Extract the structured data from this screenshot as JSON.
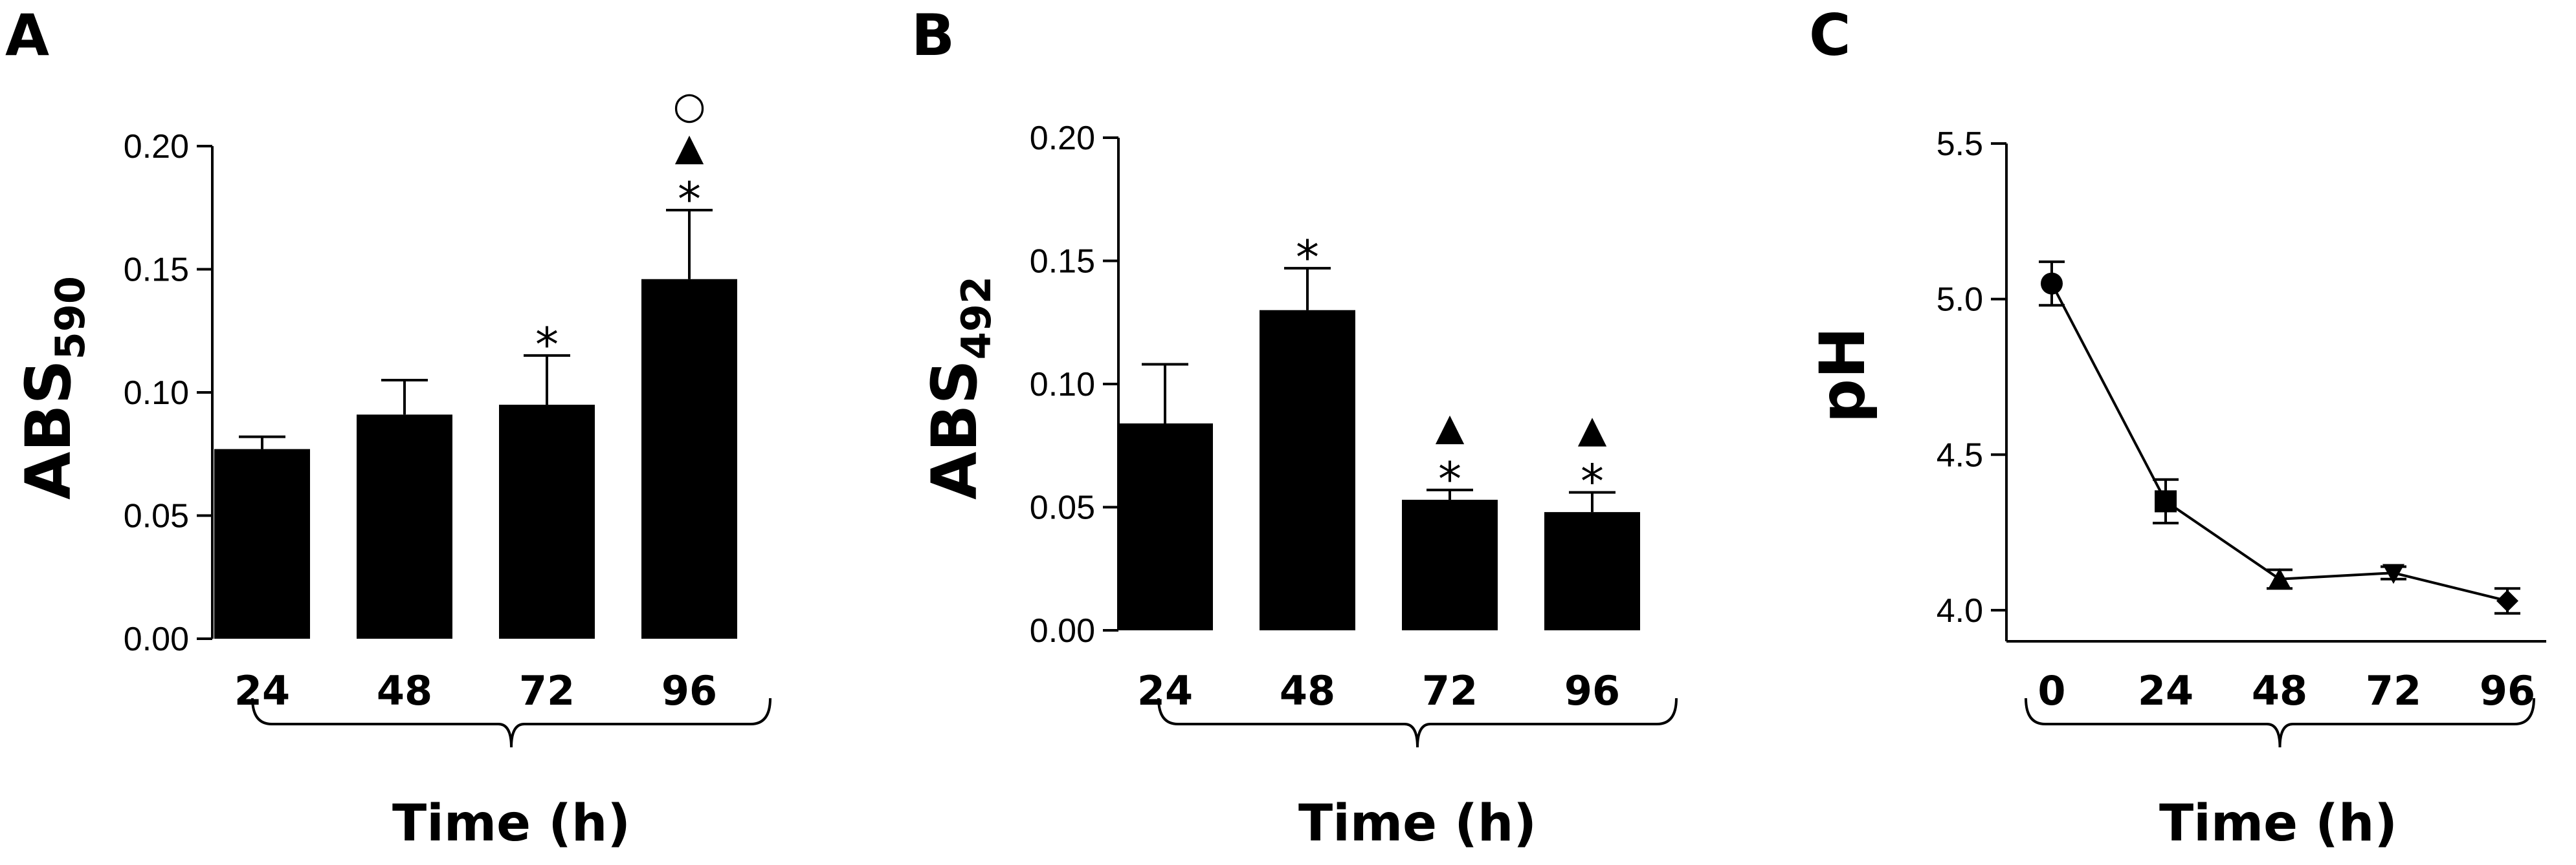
{
  "chart_data": [
    {
      "panel": "A",
      "type": "bar",
      "categories": [
        "24",
        "48",
        "72",
        "96"
      ],
      "values": [
        0.077,
        0.091,
        0.095,
        0.146
      ],
      "error": [
        0.005,
        0.014,
        0.02,
        0.028
      ],
      "annotations": [
        [],
        [],
        [
          "*"
        ],
        [
          "*",
          "▲",
          "○"
        ]
      ],
      "ylabel_main": "ABS",
      "ylabel_sub": "590",
      "xlabel": "Time (h)",
      "ylim": [
        0,
        0.2
      ],
      "yticks": [
        "0.00",
        "0.05",
        "0.10",
        "0.15",
        "0.20"
      ],
      "ytick_values": [
        0,
        0.05,
        0.1,
        0.15,
        0.2
      ]
    },
    {
      "panel": "B",
      "type": "bar",
      "categories": [
        "24",
        "48",
        "72",
        "96"
      ],
      "values": [
        0.084,
        0.13,
        0.053,
        0.048
      ],
      "error": [
        0.024,
        0.017,
        0.004,
        0.008
      ],
      "annotations": [
        [],
        [
          "*"
        ],
        [
          "*",
          "▲"
        ],
        [
          "*",
          "▲"
        ]
      ],
      "ylabel_main": "ABS",
      "ylabel_sub": "492",
      "xlabel": "Time (h)",
      "ylim": [
        0,
        0.2
      ],
      "yticks": [
        "0.00",
        "0.05",
        "0.10",
        "0.15",
        "0.20"
      ],
      "ytick_values": [
        0,
        0.05,
        0.1,
        0.15,
        0.2
      ]
    },
    {
      "panel": "C",
      "type": "line",
      "categories": [
        "0",
        "24",
        "48",
        "72",
        "96"
      ],
      "values": [
        5.05,
        4.35,
        4.1,
        4.12,
        4.03
      ],
      "error": [
        0.07,
        0.07,
        0.03,
        0.02,
        0.04
      ],
      "markers": [
        "circle",
        "square",
        "triangle-up",
        "triangle-down",
        "diamond"
      ],
      "ylabel_main": "pH",
      "xlabel": "Time (h)",
      "ylim": [
        3.9,
        5.5
      ],
      "yticks": [
        "4.0",
        "4.5",
        "5.0",
        "5.5"
      ],
      "ytick_values": [
        4.0,
        4.5,
        5.0,
        5.5
      ]
    }
  ]
}
